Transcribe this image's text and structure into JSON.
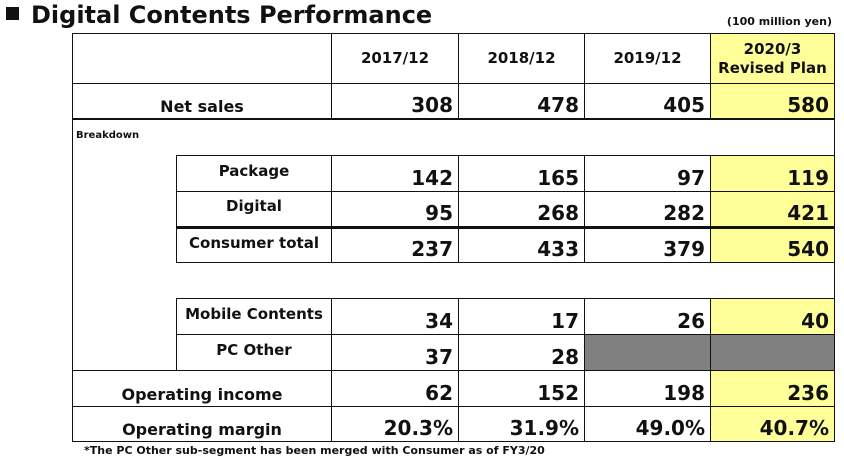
{
  "title": "Digital Contents Performance",
  "unit": "(100 million yen)",
  "columns": [
    "2017/12",
    "2018/12",
    "2019/12",
    "2020/3\nRevised Plan"
  ],
  "column_lines": {
    "plan_line1": "2020/3",
    "plan_line2": "Revised Plan"
  },
  "breakdown_label": "Breakdown",
  "rows": {
    "net_sales": {
      "label": "Net sales",
      "values": [
        "308",
        "478",
        "405",
        "580"
      ]
    },
    "package": {
      "label": "Package",
      "values": [
        "142",
        "165",
        "97",
        "119"
      ]
    },
    "digital": {
      "label": "Digital",
      "values": [
        "95",
        "268",
        "282",
        "421"
      ]
    },
    "consumer_total": {
      "label": "Consumer total",
      "values": [
        "237",
        "433",
        "379",
        "540"
      ]
    },
    "mobile_contents": {
      "label": "Mobile Contents",
      "values": [
        "34",
        "17",
        "26",
        "40"
      ]
    },
    "pc_other": {
      "label": "PC Other",
      "values": [
        "37",
        "28",
        "",
        ""
      ]
    },
    "operating_income": {
      "label": "Operating income",
      "values": [
        "62",
        "152",
        "198",
        "236"
      ]
    },
    "operating_margin": {
      "label": "Operating margin",
      "values": [
        "20.3%",
        "31.9%",
        "49.0%",
        "40.7%"
      ]
    }
  },
  "footnote": "*The PC Other sub-segment has been merged with Consumer as of FY3/20",
  "colors": {
    "plan_highlight": "#ffff99",
    "merged_cell": "#808080"
  }
}
